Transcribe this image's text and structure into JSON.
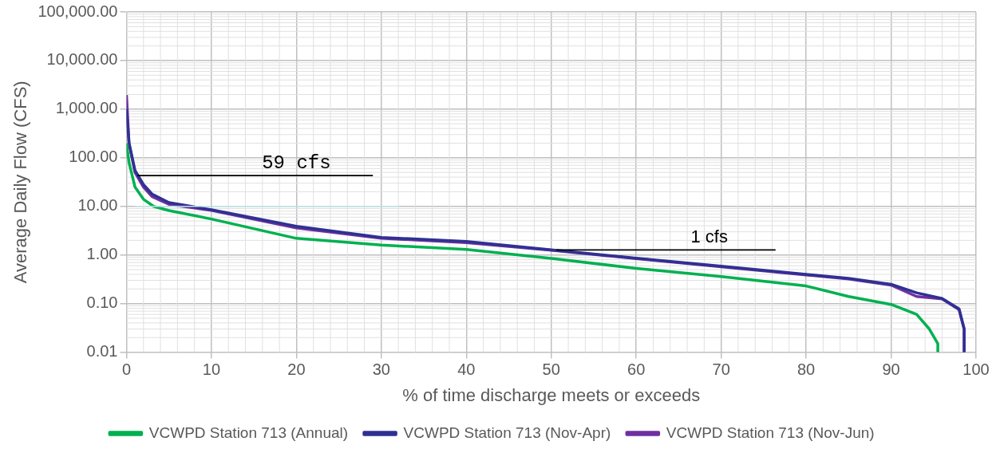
{
  "chart_data": {
    "type": "line",
    "xlabel": "% of time discharge meets or exceeds",
    "ylabel": "Average Daily Flow (CFS)",
    "log": "y",
    "grid": true,
    "legend": "bottom",
    "marker": "none",
    "line_style": "solid",
    "xlim": [
      0,
      100
    ],
    "xticks": [
      0,
      10,
      20,
      30,
      40,
      50,
      60,
      70,
      80,
      90,
      100
    ],
    "ylim": [
      0.01,
      100000
    ],
    "yticks": [
      {
        "value": 0.01,
        "label": "0.01"
      },
      {
        "value": 0.1,
        "label": "0.10"
      },
      {
        "value": 1,
        "label": "1.00"
      },
      {
        "value": 10,
        "label": "10.00"
      },
      {
        "value": 100,
        "label": "100.00"
      },
      {
        "value": 1000,
        "label": "1,000.00"
      },
      {
        "value": 10000,
        "label": "10,000.00"
      },
      {
        "value": 100000,
        "label": "100,000.00"
      }
    ],
    "series": [
      {
        "name": "VCWPD Station 713 (Annual)",
        "color": "#00b050",
        "x": [
          0,
          0.3,
          1,
          2,
          3.2,
          5,
          10,
          20,
          30,
          40,
          50,
          60,
          70,
          80,
          85,
          90,
          93,
          94.5,
          95.5,
          95.5
        ],
        "values": [
          200,
          80,
          25,
          14,
          10,
          8.2,
          5.5,
          2.2,
          1.6,
          1.3,
          0.85,
          0.53,
          0.36,
          0.23,
          0.14,
          0.096,
          0.06,
          0.03,
          0.015,
          0.01
        ]
      },
      {
        "name": "VCWPD Station 713 (Nov-Apr)",
        "color": "#2e3192",
        "x": [
          0,
          0.3,
          1,
          2,
          3,
          5,
          10,
          20,
          30,
          40,
          50,
          60,
          70,
          80,
          85,
          90,
          93,
          96,
          98,
          98.6,
          98.6
        ],
        "values": [
          1000,
          200,
          55,
          28,
          18,
          12,
          8.5,
          3.9,
          2.3,
          1.9,
          1.28,
          0.86,
          0.59,
          0.4,
          0.33,
          0.25,
          0.167,
          0.127,
          0.078,
          0.03,
          0.01
        ]
      },
      {
        "name": "VCWPD Station 713 (Nov-Jun)",
        "color": "#7030a0",
        "x": [
          0,
          0.3,
          1,
          2,
          3,
          5,
          10,
          20,
          30,
          40,
          50,
          60,
          70,
          80,
          85,
          90,
          93,
          96,
          98,
          98.6,
          98.6
        ],
        "values": [
          1950,
          200,
          50,
          25,
          16,
          11,
          8.3,
          3.6,
          2.2,
          1.8,
          1.25,
          0.84,
          0.57,
          0.39,
          0.32,
          0.24,
          0.14,
          0.125,
          0.075,
          0.03,
          0.01
        ]
      },
      {
        "color": "#bfe4e8",
        "x": [
          1,
          32
        ],
        "values": [
          10,
          10
        ]
      },
      {
        "color": "#000000",
        "x": [
          1.3,
          29
        ],
        "values": [
          43,
          43
        ]
      },
      {
        "color": "#000000",
        "x": [
          50.6,
          76.4
        ],
        "values": [
          1.27,
          1.27
        ]
      }
    ],
    "annotations": [
      {
        "text": "59 cfs",
        "x": 20,
        "y": 43
      },
      {
        "text": "1 cfs",
        "x": 68.6,
        "y": 1.27
      }
    ]
  }
}
